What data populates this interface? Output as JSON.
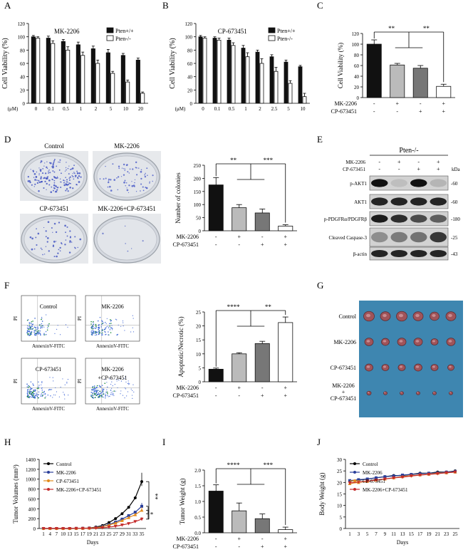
{
  "figure": {
    "panel_letters": [
      "A",
      "B",
      "C",
      "D",
      "E",
      "F",
      "G",
      "H",
      "I",
      "J"
    ],
    "dish_labels": [
      "Control",
      "MK-2206",
      "CP-673451",
      "MK-2206+CP-673451"
    ],
    "facs_labels": [
      "Control",
      "MK-2206",
      "CP-673451",
      "MK-2206 +CP-673451"
    ],
    "facs_axis": {
      "x": "AnnexinV-FITC",
      "y": "PI"
    },
    "tumor_rows": [
      "Control",
      "MK-2206",
      "CP-673451",
      "MK-2206 + CP-673451"
    ],
    "western": {
      "header": "Pten-/-",
      "treat_rows": [
        {
          "label": "MK-2206",
          "signs": [
            "-",
            "+",
            "-",
            "+"
          ]
        },
        {
          "label": "CP-673451",
          "signs": [
            "-",
            "-",
            "+",
            "+"
          ]
        }
      ],
      "kda_label": "kDa",
      "bands": [
        {
          "label": "p-AKT1",
          "kda": "-60"
        },
        {
          "label": "AKT1",
          "kda": "-60"
        },
        {
          "label": "p-PDGFRα/PDGFRβ",
          "kda": "-180"
        },
        {
          "label": "Cleaved Caspase-3",
          "kda": "-25"
        },
        {
          "label": "β-actin",
          "kda": "-43"
        }
      ]
    }
  },
  "chart_data": [
    {
      "id": "A",
      "type": "bar",
      "title": "MK-2206",
      "xlabel_unit": "(μM)",
      "ylabel": "Cell Viability (%)",
      "ylim": [
        0,
        120
      ],
      "categories": [
        "0",
        "0.1",
        "0.5",
        "1",
        "2",
        "5",
        "10",
        "20"
      ],
      "series": [
        {
          "name": "Pten+/+",
          "values": [
            100,
            98,
            93,
            88,
            82,
            76,
            72,
            65
          ],
          "errors": [
            2,
            3,
            3,
            4,
            4,
            5,
            3,
            3
          ]
        },
        {
          "name": "Pten-/-",
          "values": [
            98,
            90,
            80,
            72,
            60,
            45,
            32,
            15
          ],
          "errors": [
            2,
            4,
            5,
            5,
            5,
            3,
            3,
            2
          ]
        }
      ]
    },
    {
      "id": "B",
      "type": "bar",
      "title": "CP-673451",
      "xlabel_unit": "(μM)",
      "ylabel": "Cell Viability (%)",
      "ylim": [
        0,
        120
      ],
      "categories": [
        "0",
        "0.1",
        "0.5",
        "1",
        "2",
        "2.5",
        "5",
        "10"
      ],
      "series": [
        {
          "name": "Pten+/+",
          "values": [
            100,
            98,
            95,
            83,
            77,
            70,
            62,
            55
          ],
          "errors": [
            2,
            2,
            3,
            4,
            3,
            3,
            3,
            2
          ]
        },
        {
          "name": "Pten-/-",
          "values": [
            98,
            95,
            87,
            70,
            60,
            48,
            30,
            10
          ],
          "errors": [
            2,
            3,
            4,
            6,
            7,
            6,
            4,
            5
          ]
        }
      ]
    },
    {
      "id": "C",
      "type": "bar",
      "ylabel": "Cell Viability (%)",
      "ylim": [
        0,
        120
      ],
      "ytick_step": 20,
      "treat_labels": [
        "MK-2206",
        "CP-673451"
      ],
      "signs": [
        [
          "-",
          "+",
          "-",
          "+"
        ],
        [
          "-",
          "-",
          "+",
          "+"
        ]
      ],
      "values": [
        100,
        61,
        55,
        21
      ],
      "errors": [
        8,
        3,
        5,
        4
      ],
      "sig": [
        "**",
        "**"
      ]
    },
    {
      "id": "D",
      "type": "bar",
      "ylabel": "Number of colonies",
      "ylim": [
        0,
        250
      ],
      "ytick_step": 50,
      "treat_labels": [
        "MK-2206",
        "CP-673451"
      ],
      "signs": [
        [
          "-",
          "+",
          "-",
          "+"
        ],
        [
          "-",
          "-",
          "+",
          "+"
        ]
      ],
      "values": [
        175,
        88,
        68,
        18
      ],
      "errors": [
        28,
        12,
        15,
        5
      ],
      "sig": [
        "**",
        "***"
      ]
    },
    {
      "id": "F",
      "type": "bar",
      "ylabel": "Apoptotic/Necrotic (%)",
      "ylim": [
        0,
        25
      ],
      "ytick_step": 5,
      "treat_labels": [
        "MK-2206",
        "CP-673451"
      ],
      "signs": [
        [
          "-",
          "+",
          "-",
          "+"
        ],
        [
          "-",
          "-",
          "+",
          "+"
        ]
      ],
      "values": [
        4.5,
        10,
        13.7,
        21.2
      ],
      "errors": [
        0.4,
        0.4,
        0.8,
        2
      ],
      "sig": [
        "****",
        "**"
      ]
    },
    {
      "id": "H",
      "type": "line",
      "xlabel": "Days",
      "ylabel": "Tumor Volumes (mm³)",
      "ylim": [
        0,
        1400
      ],
      "ytick_step": 200,
      "x": [
        1,
        4,
        7,
        10,
        13,
        15,
        17,
        19,
        21,
        23,
        25,
        27,
        29,
        31,
        33,
        35
      ],
      "xtick_labels": [
        "1",
        "4",
        "7",
        "10",
        "13",
        "15",
        "17",
        "19",
        "21",
        "23",
        "25",
        "27",
        "29",
        "31",
        "33",
        "35"
      ],
      "series": [
        {
          "name": "Control",
          "values": [
            0,
            0,
            0,
            0,
            0,
            2,
            5,
            10,
            30,
            60,
            120,
            200,
            300,
            430,
            620,
            950
          ],
          "error_last": 180
        },
        {
          "name": "MK-2206",
          "values": [
            0,
            0,
            0,
            0,
            0,
            2,
            4,
            8,
            20,
            40,
            80,
            130,
            190,
            260,
            330,
            450
          ],
          "error_last": 70
        },
        {
          "name": "CP-673451",
          "values": [
            0,
            0,
            0,
            0,
            0,
            2,
            4,
            8,
            18,
            35,
            70,
            110,
            160,
            220,
            280,
            370
          ],
          "error_last": 60
        },
        {
          "name": "MK-2206+CP-673451",
          "values": [
            0,
            0,
            0,
            0,
            0,
            1,
            2,
            4,
            8,
            15,
            28,
            45,
            70,
            100,
            140,
            190
          ],
          "error_last": 40
        }
      ],
      "sig": [
        "**",
        "*"
      ]
    },
    {
      "id": "I",
      "type": "bar",
      "ylabel": "Tumor Weight (g)",
      "ylim": [
        0,
        2.0
      ],
      "ytick_step": 0.5,
      "treat_labels": [
        "MK-2206",
        "CP-673451"
      ],
      "signs": [
        [
          "-",
          "+",
          "-",
          "+"
        ],
        [
          "-",
          "-",
          "+",
          "+"
        ]
      ],
      "values": [
        1.33,
        0.7,
        0.45,
        0.1
      ],
      "errors": [
        0.2,
        0.25,
        0.15,
        0.08
      ],
      "sig": [
        "****",
        "***"
      ]
    },
    {
      "id": "J",
      "type": "line",
      "xlabel": "Days",
      "ylabel": "Body Weight (g)",
      "ylim": [
        0,
        30
      ],
      "ytick_step": 5,
      "x": [
        1,
        3,
        5,
        7,
        9,
        11,
        13,
        15,
        17,
        19,
        21,
        23,
        25
      ],
      "xtick_labels": [
        "1",
        "3",
        "5",
        "7",
        "9",
        "11",
        "13",
        "15",
        "17",
        "19",
        "21",
        "23",
        "25"
      ],
      "series": [
        {
          "name": "Control",
          "values": [
            20.5,
            21,
            21.5,
            22,
            22.5,
            23,
            23,
            23.5,
            24,
            24,
            24.5,
            24.5,
            25
          ]
        },
        {
          "name": "MK-2206",
          "values": [
            20.8,
            21.2,
            21.5,
            22,
            22.5,
            22.8,
            23.2,
            23.5,
            23.8,
            24,
            24.2,
            24.5,
            24.8
          ]
        },
        {
          "name": "CP-673451",
          "values": [
            19.5,
            20,
            20.5,
            21,
            21.5,
            22,
            22.5,
            23,
            23.3,
            23.6,
            24,
            24.2,
            24.5
          ]
        },
        {
          "name": "MK-2206+CP-673451",
          "values": [
            19.8,
            20.2,
            20.6,
            21,
            21.5,
            22,
            22.3,
            22.8,
            23.2,
            23.5,
            23.8,
            24.2,
            24.5
          ]
        }
      ]
    }
  ]
}
